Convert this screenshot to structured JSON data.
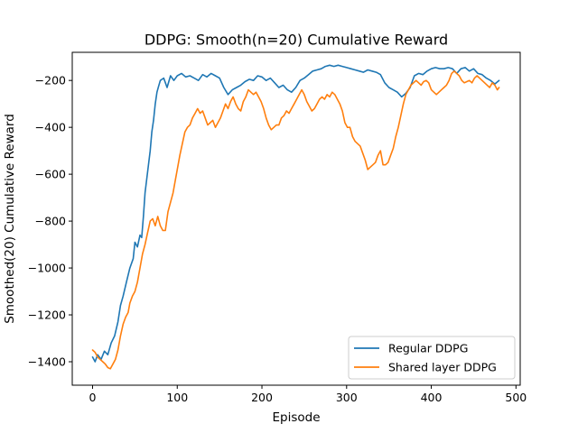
{
  "chart_data": {
    "type": "line",
    "title": "DDPG: Smooth(n=20) Cumulative Reward",
    "xlabel": "Episode",
    "ylabel": "Smoothed(20) Cumulative Reward",
    "xlim": [
      -24,
      505
    ],
    "ylim": [
      -1500,
      -80
    ],
    "xticks": [
      0,
      100,
      200,
      300,
      400,
      500
    ],
    "yticks": [
      -1400,
      -1200,
      -1000,
      -800,
      -600,
      -400,
      -200
    ],
    "grid": false,
    "legend_position": "lower-right",
    "series": [
      {
        "name": "Regular DDPG",
        "color": "#1f77b4",
        "points": [
          [
            0,
            -1380
          ],
          [
            3,
            -1400
          ],
          [
            6,
            -1370
          ],
          [
            10,
            -1390
          ],
          [
            14,
            -1355
          ],
          [
            18,
            -1370
          ],
          [
            22,
            -1320
          ],
          [
            26,
            -1290
          ],
          [
            30,
            -1230
          ],
          [
            33,
            -1160
          ],
          [
            36,
            -1120
          ],
          [
            40,
            -1060
          ],
          [
            44,
            -1000
          ],
          [
            48,
            -960
          ],
          [
            50,
            -890
          ],
          [
            53,
            -910
          ],
          [
            56,
            -860
          ],
          [
            58,
            -870
          ],
          [
            60,
            -780
          ],
          [
            62,
            -680
          ],
          [
            64,
            -620
          ],
          [
            66,
            -560
          ],
          [
            68,
            -500
          ],
          [
            70,
            -420
          ],
          [
            72,
            -370
          ],
          [
            74,
            -300
          ],
          [
            76,
            -250
          ],
          [
            78,
            -225
          ],
          [
            80,
            -200
          ],
          [
            84,
            -190
          ],
          [
            88,
            -230
          ],
          [
            92,
            -180
          ],
          [
            96,
            -200
          ],
          [
            100,
            -180
          ],
          [
            105,
            -170
          ],
          [
            110,
            -185
          ],
          [
            115,
            -180
          ],
          [
            120,
            -190
          ],
          [
            125,
            -200
          ],
          [
            130,
            -175
          ],
          [
            135,
            -185
          ],
          [
            140,
            -170
          ],
          [
            145,
            -180
          ],
          [
            150,
            -190
          ],
          [
            155,
            -230
          ],
          [
            160,
            -260
          ],
          [
            165,
            -240
          ],
          [
            170,
            -230
          ],
          [
            175,
            -220
          ],
          [
            180,
            -205
          ],
          [
            185,
            -195
          ],
          [
            190,
            -200
          ],
          [
            195,
            -180
          ],
          [
            200,
            -185
          ],
          [
            205,
            -200
          ],
          [
            210,
            -190
          ],
          [
            215,
            -210
          ],
          [
            220,
            -230
          ],
          [
            225,
            -220
          ],
          [
            230,
            -240
          ],
          [
            235,
            -250
          ],
          [
            240,
            -230
          ],
          [
            245,
            -200
          ],
          [
            250,
            -190
          ],
          [
            255,
            -175
          ],
          [
            260,
            -160
          ],
          [
            265,
            -155
          ],
          [
            270,
            -150
          ],
          [
            275,
            -140
          ],
          [
            280,
            -135
          ],
          [
            285,
            -140
          ],
          [
            290,
            -135
          ],
          [
            295,
            -140
          ],
          [
            300,
            -145
          ],
          [
            305,
            -150
          ],
          [
            310,
            -155
          ],
          [
            315,
            -160
          ],
          [
            320,
            -165
          ],
          [
            325,
            -155
          ],
          [
            330,
            -160
          ],
          [
            335,
            -165
          ],
          [
            340,
            -175
          ],
          [
            345,
            -210
          ],
          [
            350,
            -230
          ],
          [
            355,
            -240
          ],
          [
            360,
            -250
          ],
          [
            365,
            -270
          ],
          [
            370,
            -255
          ],
          [
            375,
            -230
          ],
          [
            380,
            -180
          ],
          [
            385,
            -170
          ],
          [
            390,
            -175
          ],
          [
            395,
            -160
          ],
          [
            400,
            -150
          ],
          [
            405,
            -145
          ],
          [
            410,
            -150
          ],
          [
            415,
            -150
          ],
          [
            420,
            -145
          ],
          [
            425,
            -150
          ],
          [
            430,
            -170
          ],
          [
            435,
            -150
          ],
          [
            440,
            -145
          ],
          [
            445,
            -160
          ],
          [
            450,
            -150
          ],
          [
            455,
            -170
          ],
          [
            460,
            -175
          ],
          [
            465,
            -190
          ],
          [
            470,
            -200
          ],
          [
            475,
            -215
          ],
          [
            480,
            -200
          ]
        ]
      },
      {
        "name": "Shared layer DDPG",
        "color": "#ff7f0e",
        "points": [
          [
            0,
            -1350
          ],
          [
            3,
            -1360
          ],
          [
            6,
            -1380
          ],
          [
            9,
            -1390
          ],
          [
            12,
            -1400
          ],
          [
            15,
            -1410
          ],
          [
            18,
            -1425
          ],
          [
            21,
            -1430
          ],
          [
            24,
            -1410
          ],
          [
            27,
            -1390
          ],
          [
            30,
            -1350
          ],
          [
            33,
            -1290
          ],
          [
            36,
            -1240
          ],
          [
            39,
            -1210
          ],
          [
            42,
            -1190
          ],
          [
            44,
            -1150
          ],
          [
            47,
            -1120
          ],
          [
            50,
            -1100
          ],
          [
            53,
            -1060
          ],
          [
            56,
            -1000
          ],
          [
            59,
            -940
          ],
          [
            62,
            -900
          ],
          [
            65,
            -850
          ],
          [
            68,
            -800
          ],
          [
            71,
            -790
          ],
          [
            74,
            -820
          ],
          [
            77,
            -780
          ],
          [
            80,
            -820
          ],
          [
            83,
            -840
          ],
          [
            86,
            -840
          ],
          [
            89,
            -760
          ],
          [
            92,
            -720
          ],
          [
            95,
            -680
          ],
          [
            98,
            -620
          ],
          [
            100,
            -580
          ],
          [
            103,
            -520
          ],
          [
            106,
            -470
          ],
          [
            109,
            -420
          ],
          [
            112,
            -400
          ],
          [
            115,
            -390
          ],
          [
            118,
            -360
          ],
          [
            121,
            -340
          ],
          [
            124,
            -320
          ],
          [
            127,
            -340
          ],
          [
            130,
            -330
          ],
          [
            133,
            -360
          ],
          [
            136,
            -390
          ],
          [
            139,
            -380
          ],
          [
            142,
            -370
          ],
          [
            145,
            -400
          ],
          [
            148,
            -380
          ],
          [
            151,
            -360
          ],
          [
            154,
            -330
          ],
          [
            157,
            -300
          ],
          [
            160,
            -320
          ],
          [
            163,
            -290
          ],
          [
            166,
            -270
          ],
          [
            169,
            -300
          ],
          [
            172,
            -320
          ],
          [
            175,
            -330
          ],
          [
            178,
            -290
          ],
          [
            181,
            -270
          ],
          [
            184,
            -240
          ],
          [
            187,
            -250
          ],
          [
            190,
            -260
          ],
          [
            193,
            -250
          ],
          [
            196,
            -270
          ],
          [
            199,
            -290
          ],
          [
            202,
            -320
          ],
          [
            205,
            -360
          ],
          [
            208,
            -390
          ],
          [
            211,
            -410
          ],
          [
            214,
            -400
          ],
          [
            217,
            -390
          ],
          [
            220,
            -390
          ],
          [
            223,
            -360
          ],
          [
            226,
            -350
          ],
          [
            229,
            -330
          ],
          [
            232,
            -340
          ],
          [
            235,
            -320
          ],
          [
            238,
            -300
          ],
          [
            241,
            -280
          ],
          [
            244,
            -260
          ],
          [
            247,
            -240
          ],
          [
            250,
            -260
          ],
          [
            253,
            -290
          ],
          [
            256,
            -310
          ],
          [
            259,
            -330
          ],
          [
            262,
            -320
          ],
          [
            265,
            -300
          ],
          [
            268,
            -280
          ],
          [
            271,
            -270
          ],
          [
            274,
            -280
          ],
          [
            277,
            -260
          ],
          [
            280,
            -270
          ],
          [
            283,
            -250
          ],
          [
            286,
            -260
          ],
          [
            289,
            -280
          ],
          [
            292,
            -300
          ],
          [
            295,
            -330
          ],
          [
            298,
            -380
          ],
          [
            301,
            -400
          ],
          [
            304,
            -400
          ],
          [
            307,
            -440
          ],
          [
            310,
            -460
          ],
          [
            313,
            -470
          ],
          [
            316,
            -480
          ],
          [
            319,
            -510
          ],
          [
            322,
            -540
          ],
          [
            325,
            -580
          ],
          [
            328,
            -570
          ],
          [
            331,
            -560
          ],
          [
            334,
            -550
          ],
          [
            337,
            -520
          ],
          [
            340,
            -500
          ],
          [
            343,
            -560
          ],
          [
            346,
            -560
          ],
          [
            349,
            -550
          ],
          [
            352,
            -520
          ],
          [
            355,
            -490
          ],
          [
            358,
            -440
          ],
          [
            361,
            -400
          ],
          [
            364,
            -350
          ],
          [
            367,
            -300
          ],
          [
            370,
            -260
          ],
          [
            373,
            -240
          ],
          [
            376,
            -220
          ],
          [
            379,
            -210
          ],
          [
            382,
            -200
          ],
          [
            385,
            -210
          ],
          [
            388,
            -220
          ],
          [
            391,
            -205
          ],
          [
            394,
            -200
          ],
          [
            397,
            -210
          ],
          [
            400,
            -240
          ],
          [
            403,
            -250
          ],
          [
            406,
            -260
          ],
          [
            409,
            -250
          ],
          [
            412,
            -240
          ],
          [
            415,
            -230
          ],
          [
            418,
            -220
          ],
          [
            421,
            -200
          ],
          [
            424,
            -170
          ],
          [
            427,
            -160
          ],
          [
            430,
            -170
          ],
          [
            433,
            -180
          ],
          [
            436,
            -200
          ],
          [
            439,
            -210
          ],
          [
            442,
            -205
          ],
          [
            445,
            -200
          ],
          [
            448,
            -210
          ],
          [
            451,
            -190
          ],
          [
            454,
            -180
          ],
          [
            457,
            -190
          ],
          [
            460,
            -200
          ],
          [
            463,
            -210
          ],
          [
            466,
            -220
          ],
          [
            469,
            -230
          ],
          [
            472,
            -210
          ],
          [
            475,
            -220
          ],
          [
            478,
            -240
          ],
          [
            480,
            -230
          ]
        ]
      }
    ]
  }
}
